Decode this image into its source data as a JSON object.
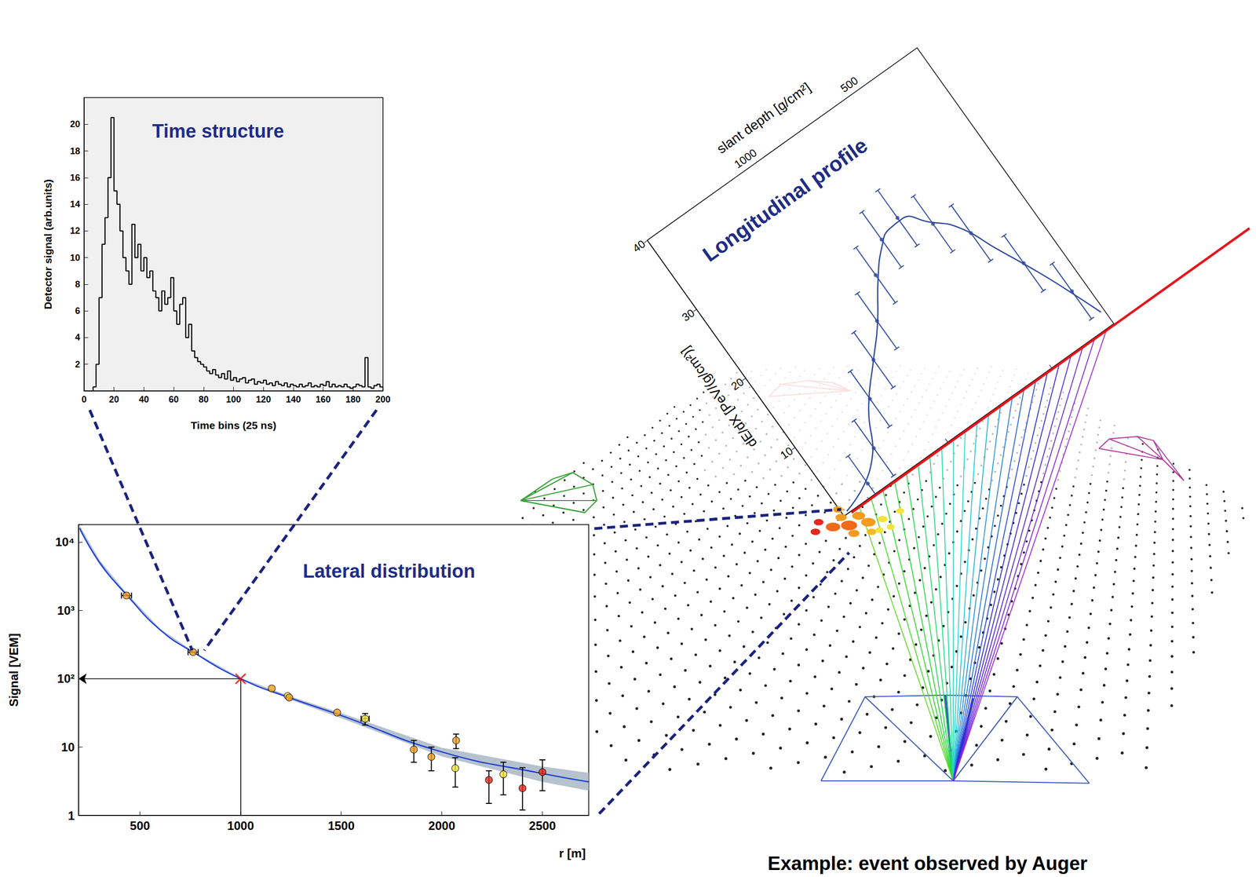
{
  "chart_data": [
    {
      "type": "histogram",
      "title": "Time structure",
      "x_label": "Time bins (25 ns)",
      "y_label": "Detector signal (arb.units)",
      "bins": [
        0,
        2,
        4,
        6,
        8,
        10,
        12,
        14,
        16,
        18,
        20,
        22,
        24,
        26,
        28,
        30,
        32,
        34,
        36,
        38,
        40,
        42,
        44,
        46,
        48,
        50,
        52,
        54,
        56,
        58,
        60,
        62,
        64,
        66,
        68,
        70,
        72,
        74,
        76,
        78,
        80,
        82,
        84,
        86,
        88,
        90,
        92,
        94,
        96,
        98,
        100,
        102,
        104,
        106,
        108,
        110,
        112,
        114,
        116,
        118,
        120,
        122,
        124,
        126,
        128,
        130,
        132,
        134,
        136,
        138,
        140,
        142,
        144,
        146,
        148,
        150,
        152,
        154,
        156,
        158,
        160,
        162,
        164,
        166,
        168,
        170,
        172,
        174,
        176,
        178,
        180,
        182,
        184,
        186,
        188,
        190,
        192,
        194,
        196,
        198,
        200
      ],
      "values": [
        0,
        0,
        0,
        0.3,
        2,
        7,
        11,
        13,
        16,
        20.5,
        15,
        14,
        12,
        10,
        9,
        8,
        12.5,
        10,
        11,
        9,
        10,
        8.5,
        9,
        7.5,
        7,
        6,
        7.5,
        6.5,
        7,
        8.5,
        6,
        5,
        6.5,
        7,
        4,
        5,
        3,
        2.5,
        2.2,
        2,
        1.8,
        1.5,
        1.3,
        1.6,
        1.2,
        1,
        1.3,
        0.9,
        1.5,
        0.8,
        1,
        0.7,
        0.9,
        1,
        0.6,
        0.8,
        0.9,
        0.5,
        0.7,
        0.6,
        0.8,
        0.5,
        0.6,
        0.4,
        0.7,
        0.5,
        0.4,
        0.6,
        0.3,
        0.5,
        0.4,
        0.3,
        0.5,
        0.3,
        0.4,
        0.6,
        0.3,
        0.4,
        0.3,
        0.5,
        0.4,
        0.7,
        0.3,
        0.5,
        0.3,
        0.4,
        0.3,
        0.5,
        0.3,
        0.2,
        0.3,
        0.5,
        0.4,
        0.3,
        2.5,
        0.3,
        0.2,
        0.4,
        0.5,
        0.3
      ],
      "color": "#000000",
      "xlim": [
        0,
        200
      ],
      "ylim": [
        0,
        22
      ],
      "xticks": [
        0,
        20,
        40,
        60,
        80,
        100,
        120,
        140,
        160,
        180,
        200
      ],
      "yticks": [
        2,
        4,
        6,
        8,
        10,
        12,
        14,
        16,
        18,
        20
      ],
      "grid": false
    },
    {
      "type": "scatter",
      "title": "Lateral distribution",
      "x_label": "r [m]",
      "y_label": "Signal [VEM]",
      "log": "y",
      "xlim": [
        195,
        2730
      ],
      "ylim": [
        1,
        18000
      ],
      "xticks": [
        500,
        1000,
        1500,
        2000,
        2500
      ],
      "yticks": [
        1,
        10,
        {
          "value": 100,
          "label": "10²"
        },
        {
          "value": 1000,
          "label": "10³"
        },
        {
          "value": 10000,
          "label": "10⁴"
        }
      ],
      "grid": false,
      "series": [
        {
          "type": "band",
          "color": "#a9b7c6",
          "x": [
            200,
            300,
            433,
            600,
            764,
            1000,
            1250,
            1500,
            2000,
            2500,
            2730
          ],
          "low": [
            14500,
            4600,
            1600,
            500,
            238,
            97,
            49,
            26.5,
            7.3,
            3.1,
            2.3
          ],
          "high": [
            17500,
            5400,
            1800,
            540,
            252,
            103,
            55,
            31.5,
            9.8,
            5.2,
            4.2
          ]
        },
        {
          "type": "line",
          "color": "#1d3fd6",
          "x": [
            200,
            300,
            433,
            600,
            764,
            1000,
            1250,
            1500,
            2000,
            2500,
            2730
          ],
          "values": [
            16000,
            5000,
            1700,
            520,
            245,
            100,
            52,
            29,
            8.5,
            4.1,
            3.1
          ]
        },
        {
          "type": "scatter",
          "marker": "circle",
          "x": [
            433,
            764,
            1155,
            1234,
            1242,
            1480,
            1619,
            1861,
            1948,
            2067,
            2071,
            2234,
            2306,
            2401,
            2500
          ],
          "values": [
            1650,
            245,
            72,
            56,
            53,
            32,
            26,
            9.2,
            7.2,
            4.9,
            12.5,
            3.3,
            4.0,
            2.5,
            4.3
          ],
          "colors": [
            "#f39c1e",
            "#f39c1e",
            "#f39c1e",
            "#f3e33b",
            "#f39c1e",
            "#f39c1e",
            "#f3e33b",
            "#f39c1e",
            "#f39c1e",
            "#f3e33b",
            "#f39c1e",
            "#e8261c",
            "#f3e33b",
            "#e8261c",
            "#e8261c"
          ],
          "errors": [
            null,
            null,
            null,
            null,
            null,
            null,
            [
              21,
              31
            ],
            [
              6,
              12.5
            ],
            [
              4.5,
              10
            ],
            [
              2.6,
              7
            ],
            [
              9.5,
              15.5
            ],
            [
              1.5,
              4.5
            ],
            [
              2,
              6
            ],
            [
              1.2,
              5
            ],
            [
              2.3,
              6.5
            ]
          ],
          "x_errors": [
            25,
            25,
            null,
            null,
            null,
            null,
            20,
            null,
            null,
            null,
            null,
            null,
            null,
            null,
            null
          ]
        },
        {
          "type": "scatter",
          "marker": "cross",
          "color": "#ff0000",
          "x": [
            1000
          ],
          "values": [
            100
          ]
        }
      ]
    },
    {
      "type": "line",
      "title": "Longitudinal profile",
      "x_label": "slant depth [g/cm²]",
      "y_label": "dE/dX [PeV/(g/cm²)]",
      "xlim": [
        1500,
        200
      ],
      "ylim": [
        0,
        40
      ],
      "xticks": [
        500,
        1000
      ],
      "yticks": [
        10,
        20,
        30,
        40
      ],
      "grid": false,
      "series": [
        {
          "type": "line",
          "color": "#2e4a9e",
          "x": [
            1480,
            1300,
            1168,
            1050,
            960,
            850,
            765,
            700,
            638,
            560,
            477,
            400,
            322,
            260,
            215
          ],
          "values": [
            0.3,
            3,
            9,
            13,
            16,
            20.5,
            23.3,
            24.5,
            24.6,
            22.5,
            19.9,
            15,
            10,
            5.5,
            2
          ]
        },
        {
          "type": "scatter",
          "marker": "circle",
          "color": "#2e4a9e",
          "x": [
            1350,
            1250,
            1150,
            1050,
            950,
            850,
            750,
            650,
            550,
            450,
            350,
            260
          ],
          "values": [
            1.5,
            4.5,
            9.5,
            13,
            16.5,
            21,
            24,
            25,
            22,
            18.5,
            12,
            6
          ],
          "errors": [
            [
              -2.5,
              5.5
            ],
            [
              0.5,
              8.5
            ],
            [
              5.5,
              13.5
            ],
            [
              9,
              17
            ],
            [
              12.5,
              20.5
            ],
            [
              17,
              25
            ],
            [
              20,
              28
            ],
            [
              21,
              29
            ],
            [
              18,
              26
            ],
            [
              14.5,
              22.5
            ],
            [
              8,
              16
            ],
            [
              2,
              10
            ]
          ]
        }
      ]
    }
  ],
  "caption": "Example: event observed by Auger"
}
